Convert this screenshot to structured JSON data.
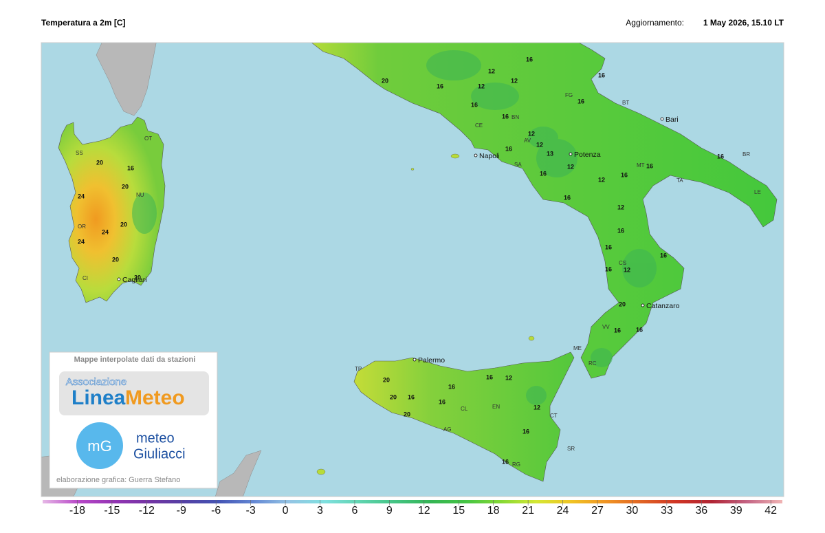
{
  "header": {
    "title": "Temperatura a 2m [C]",
    "update_label": "Aggiornamento:",
    "update_time": "1 May 2026, 15.10 LT"
  },
  "map": {
    "cities": [
      "Napoli",
      "Potenza",
      "Bari",
      "Catanzaro",
      "Palermo",
      "Cagliari"
    ],
    "province_codes": [
      "OT",
      "SS",
      "NU",
      "OR",
      "CI",
      "FG",
      "BT",
      "BR",
      "TA",
      "LE",
      "MT",
      "CE",
      "BN",
      "AV",
      "SA",
      "CS",
      "VV",
      "RC",
      "ME",
      "TP",
      "CL",
      "EN",
      "AG",
      "CT",
      "SR",
      "RG"
    ],
    "contour_labels": [
      20,
      16,
      20,
      24,
      20,
      24,
      24,
      20,
      20,
      16,
      12,
      20,
      16,
      12,
      16,
      12,
      16,
      16,
      16,
      12,
      12,
      16,
      13,
      12,
      16,
      12,
      16,
      16,
      16,
      16,
      12,
      16,
      16,
      16,
      12,
      16,
      20,
      16,
      16,
      20,
      20,
      16,
      20,
      16,
      16,
      12,
      16,
      12,
      16,
      16
    ]
  },
  "logo": {
    "caption": "Mappe interpolate dati da stazioni",
    "association": "Associazione",
    "brand_a": "Linea",
    "brand_b": "Meteo",
    "mg": "mG",
    "meteo": "meteo",
    "giuliacci": "Giuliacci",
    "credit": "elaborazione grafica: Guerra Stefano"
  },
  "colorbar": {
    "lim": [
      -21,
      43
    ],
    "ticks": [
      -18,
      -15,
      -12,
      -9,
      -6,
      -3,
      0,
      3,
      6,
      9,
      12,
      15,
      18,
      21,
      24,
      27,
      30,
      33,
      36,
      39,
      42
    ],
    "colors": [
      "#e6b8e6",
      "#b848c8",
      "#9434b4",
      "#7434a4",
      "#5440a4",
      "#4454b4",
      "#6488d4",
      "#94c4e4",
      "#80e0e0",
      "#60d4b0",
      "#44c484",
      "#34b454",
      "#44c444",
      "#84d834",
      "#d4e834",
      "#f0c424",
      "#f09424",
      "#e06424",
      "#d03424",
      "#b02434",
      "#c46484",
      "#f0b4b4"
    ]
  }
}
